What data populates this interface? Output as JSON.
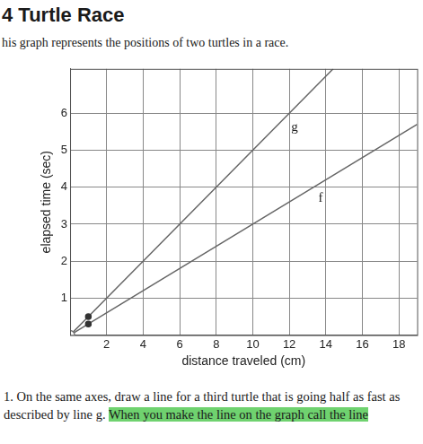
{
  "header": {
    "title": "4 Turtle Race",
    "intro": "his graph represents the positions of two turtles in a race."
  },
  "chart_data": {
    "type": "line",
    "x_label": "distance traveled (cm)",
    "y_label": "elapsed time (sec)",
    "series": [
      {
        "name": "g",
        "color": "#666666",
        "x": [
          0,
          1,
          14.4
        ],
        "values": [
          0,
          0.5,
          7.2
        ],
        "marker": "circle"
      },
      {
        "name": "f",
        "color": "#666666",
        "x": [
          0,
          1,
          19
        ],
        "values": [
          0,
          0.3,
          5.7
        ],
        "marker": "circle"
      }
    ],
    "xlim": [
      0,
      19
    ],
    "ylim": [
      0,
      7.2
    ],
    "xticks": [
      2,
      4,
      6,
      8,
      10,
      12,
      14,
      16,
      18
    ],
    "yticks": [
      1,
      2,
      3,
      4,
      5,
      6
    ],
    "grid": true
  },
  "question": {
    "text": "1. On the same axes, draw a line for a third turtle that is going half as fast as described by line g.",
    "highlight": "When you make the line on the graph call the line"
  }
}
